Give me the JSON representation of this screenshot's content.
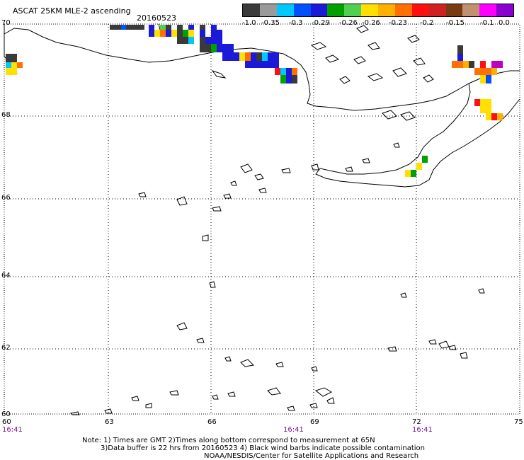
{
  "header": {
    "title": "ASCAT 25KM MLE-2 ascending",
    "date": "20160523"
  },
  "colorbar": {
    "colors": [
      "#3a3a3a",
      "#9a9a9a",
      "#00c8ff",
      "#0050ff",
      "#1a1ad8",
      "#00a000",
      "#50d050",
      "#ffe000",
      "#ffb000",
      "#ff7000",
      "#ff1010",
      "#d02020",
      "#7a3a10",
      "#c09070",
      "#ff00ff",
      "#8a00d0"
    ],
    "labels": [
      "-1.0",
      "-0.35",
      "-0.3",
      "-0.29",
      "-0.26",
      "-0.26",
      "-0.23",
      "-0.2",
      "-0.15",
      "-0.1",
      "0.0"
    ]
  },
  "axes": {
    "lat_labels": [
      "70",
      "68",
      "66",
      "64",
      "62",
      "60"
    ],
    "lon_labels": [
      "60",
      "63",
      "66",
      "69",
      "72",
      "75"
    ],
    "time_labels": [
      "16:41",
      "16:41",
      "16:41"
    ]
  },
  "notes": {
    "line1": "Note: 1) Times are GMT 2)Times along bottom correspond to measurement at 65N",
    "line2": "3)Data buffer is 22 hrs from 20160523 4) Black wind barbs indicate possible contamination",
    "line3": "NOAA/NESDIS/Center for Satellite Applications and Research"
  },
  "map": {
    "lat_range": [
      60,
      70
    ],
    "lon_range": [
      60,
      75
    ],
    "grid": "dotted",
    "land_fill": "none",
    "coastline_color": "#000000"
  }
}
